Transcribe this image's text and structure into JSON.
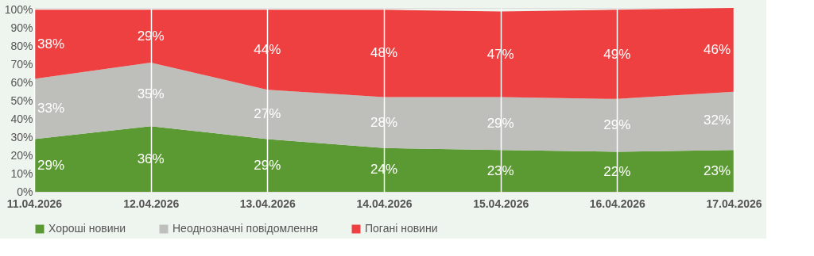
{
  "chart_data": {
    "type": "area",
    "stacked": true,
    "categories": [
      "11.04.2026",
      "12.04.2026",
      "13.04.2026",
      "14.04.2026",
      "15.04.2026",
      "16.04.2026",
      "17.04.2026"
    ],
    "series": [
      {
        "name": "Хороші новини",
        "color": "#5b9a32",
        "values": [
          29,
          36,
          29,
          24,
          23,
          22,
          23
        ],
        "value_labels": [
          "29%",
          "36%",
          "29%",
          "24%",
          "23%",
          "22%",
          "23%"
        ]
      },
      {
        "name": "Неоднозначні повідомлення",
        "color": "#bebebb",
        "values": [
          33,
          35,
          27,
          28,
          29,
          29,
          32
        ],
        "value_labels": [
          "33%",
          "35%",
          "27%",
          "28%",
          "29%",
          "29%",
          "32%"
        ]
      },
      {
        "name": "Погані новини",
        "color": "#ee4040",
        "values": [
          38,
          29,
          44,
          48,
          47,
          49,
          46
        ],
        "value_labels": [
          "38%",
          "29%",
          "44%",
          "48%",
          "47%",
          "49%",
          "46%"
        ]
      }
    ],
    "ylim": [
      0,
      101
    ],
    "yticks": [
      {
        "value": 0,
        "label": "0%"
      },
      {
        "value": 10,
        "label": "10%"
      },
      {
        "value": 20,
        "label": "20%"
      },
      {
        "value": 30,
        "label": "30%"
      },
      {
        "value": 40,
        "label": "40%"
      },
      {
        "value": 50,
        "label": "50%"
      },
      {
        "value": 60,
        "label": "60%"
      },
      {
        "value": 70,
        "label": "70%"
      },
      {
        "value": 80,
        "label": "80%"
      },
      {
        "value": 90,
        "label": "90%"
      },
      {
        "value": 100,
        "label": "100%"
      }
    ],
    "grid": "x",
    "legend": "bottom"
  }
}
